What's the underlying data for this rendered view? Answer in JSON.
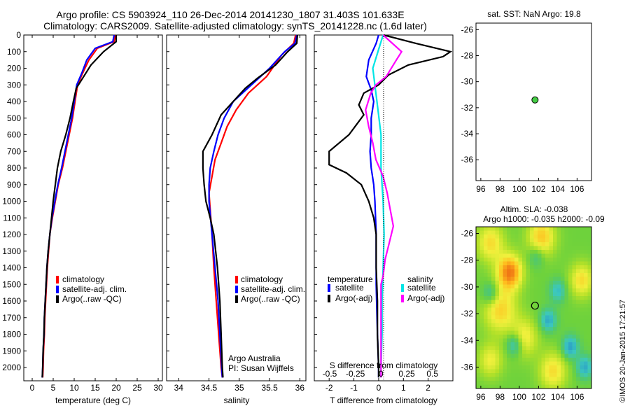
{
  "title_line1": "Argo profile: CS 5903924_110 26-Dec-2014 20141230_1807 31.403S 101.633E",
  "title_line2": "Climatology: CARS2009. Satellite-adjusted climatology: synTS_20141228.nc (1.6d later)",
  "sst_title": "sat. SST: NaN Argo: 19.8",
  "slamap_title1": "Altim. SLA: -0.038",
  "slamap_title2": "Argo h1000: -0.035 h2000: -0.09",
  "credit": "©IMOS 20-Jan-2015 17:21:57",
  "argo_note1": "Argo Australia",
  "argo_note2": "PI: Susan Wijffels",
  "colors": {
    "climatology": "#ff0000",
    "satellite": "#0000ff",
    "argo": "#000000",
    "sal_satellite": "#00e5e5",
    "sal_argo": "#ff00ff",
    "float_marker": "#44cc44"
  },
  "chart_data": [
    {
      "type": "line",
      "xlabel": "temperature (deg C)",
      "ylabel": "",
      "xlim": [
        -2,
        31
      ],
      "ylim": [
        2080,
        0
      ],
      "xticks": [
        "0",
        "5",
        "10",
        "15",
        "20",
        "25",
        "30"
      ],
      "yticks": [
        "0",
        "100",
        "200",
        "300",
        "400",
        "500",
        "600",
        "700",
        "800",
        "900",
        "1000",
        "1100",
        "1200",
        "1300",
        "1400",
        "1500",
        "1600",
        "1700",
        "1800",
        "1900",
        "2000"
      ],
      "legend": [
        "climatology",
        "satellite-adj. clim.",
        "Argo(..raw -QC)"
      ],
      "series": [
        {
          "name": "climatology",
          "points": [
            [
              19.8,
              0
            ],
            [
              19.5,
              40
            ],
            [
              15.5,
              80
            ],
            [
              13.5,
              150
            ],
            [
              12,
              230
            ],
            [
              10.8,
              300
            ],
            [
              10.2,
              400
            ],
            [
              9.6,
              500
            ],
            [
              8.8,
              600
            ],
            [
              8,
              700
            ],
            [
              7.2,
              800
            ],
            [
              6.2,
              900
            ],
            [
              5.5,
              1000
            ],
            [
              4.8,
              1100
            ],
            [
              4.2,
              1200
            ],
            [
              3.9,
              1300
            ],
            [
              3.6,
              1400
            ],
            [
              3.4,
              1500
            ],
            [
              3.2,
              1600
            ],
            [
              3,
              1700
            ],
            [
              2.9,
              1800
            ],
            [
              2.7,
              1900
            ],
            [
              2.6,
              2000
            ],
            [
              2.5,
              2060
            ]
          ]
        },
        {
          "name": "satellite-adj. clim.",
          "points": [
            [
              19.5,
              0
            ],
            [
              19.2,
              40
            ],
            [
              15,
              80
            ],
            [
              13,
              150
            ],
            [
              11.8,
              230
            ],
            [
              10.6,
              300
            ],
            [
              10,
              400
            ],
            [
              9.4,
              500
            ],
            [
              8.6,
              600
            ],
            [
              7.8,
              700
            ],
            [
              7,
              800
            ],
            [
              6.1,
              900
            ],
            [
              5.4,
              1000
            ],
            [
              4.7,
              1100
            ],
            [
              4.2,
              1200
            ],
            [
              3.8,
              1300
            ],
            [
              3.5,
              1400
            ],
            [
              3.3,
              1500
            ],
            [
              3.1,
              1600
            ],
            [
              2.9,
              1700
            ],
            [
              2.8,
              1800
            ],
            [
              2.6,
              1900
            ],
            [
              2.5,
              2000
            ],
            [
              2.4,
              2060
            ]
          ]
        },
        {
          "name": "Argo(..raw -QC)",
          "points": [
            [
              20,
              0
            ],
            [
              20,
              40
            ],
            [
              17,
              100
            ],
            [
              14,
              180
            ],
            [
              12,
              260
            ],
            [
              10.5,
              320
            ],
            [
              9.8,
              400
            ],
            [
              9,
              500
            ],
            [
              8,
              600
            ],
            [
              6.8,
              700
            ],
            [
              6,
              800
            ],
            [
              5.5,
              900
            ],
            [
              5,
              1000
            ],
            [
              4.6,
              1100
            ],
            [
              4.2,
              1200
            ],
            [
              3.8,
              1300
            ],
            [
              3.5,
              1400
            ],
            [
              3.3,
              1500
            ],
            [
              3.1,
              1600
            ],
            [
              2.9,
              1700
            ],
            [
              2.8,
              1800
            ],
            [
              2.6,
              1900
            ],
            [
              2.5,
              2000
            ],
            [
              2.4,
              2060
            ]
          ]
        }
      ]
    },
    {
      "type": "line",
      "xlabel": "salinity",
      "xlim": [
        33.8,
        36.1
      ],
      "ylim": [
        2080,
        0
      ],
      "xticks": [
        "34",
        "34.5",
        "35",
        "35.5",
        "36"
      ],
      "legend": [
        "climatology",
        "satellite-adj. clim.",
        "Argo(..raw -QC)"
      ],
      "series": [
        {
          "name": "climatology",
          "points": [
            [
              35.93,
              0
            ],
            [
              35.9,
              50
            ],
            [
              35.7,
              120
            ],
            [
              35.45,
              250
            ],
            [
              35.15,
              350
            ],
            [
              34.95,
              450
            ],
            [
              34.8,
              550
            ],
            [
              34.7,
              650
            ],
            [
              34.6,
              750
            ],
            [
              34.55,
              850
            ],
            [
              34.5,
              950
            ],
            [
              34.52,
              1050
            ],
            [
              34.55,
              1200
            ],
            [
              34.58,
              1400
            ],
            [
              34.62,
              1600
            ],
            [
              34.66,
              1800
            ],
            [
              34.7,
              2000
            ],
            [
              34.72,
              2060
            ]
          ]
        },
        {
          "name": "satellite-adj. clim.",
          "points": [
            [
              35.95,
              0
            ],
            [
              35.92,
              50
            ],
            [
              35.75,
              100
            ],
            [
              35.5,
              200
            ],
            [
              35.2,
              300
            ],
            [
              34.9,
              400
            ],
            [
              34.75,
              500
            ],
            [
              34.65,
              600
            ],
            [
              34.58,
              700
            ],
            [
              34.52,
              800
            ],
            [
              34.5,
              900
            ],
            [
              34.5,
              1000
            ],
            [
              34.55,
              1200
            ],
            [
              34.6,
              1400
            ],
            [
              34.65,
              1600
            ],
            [
              34.68,
              1800
            ],
            [
              34.71,
              2000
            ],
            [
              34.72,
              2060
            ]
          ]
        },
        {
          "name": "Argo(..raw -QC)",
          "points": [
            [
              35.96,
              0
            ],
            [
              35.95,
              50
            ],
            [
              35.8,
              100
            ],
            [
              35.6,
              180
            ],
            [
              35.3,
              260
            ],
            [
              35.1,
              320
            ],
            [
              34.9,
              400
            ],
            [
              34.7,
              480
            ],
            [
              34.55,
              600
            ],
            [
              34.4,
              700
            ],
            [
              34.4,
              800
            ],
            [
              34.42,
              900
            ],
            [
              34.45,
              1000
            ],
            [
              34.52,
              1100
            ],
            [
              34.58,
              1200
            ],
            [
              34.64,
              1400
            ],
            [
              34.68,
              1600
            ],
            [
              34.7,
              1800
            ],
            [
              34.72,
              2000
            ],
            [
              34.73,
              2060
            ]
          ]
        }
      ]
    },
    {
      "type": "line",
      "xlabel": "T difference from climatology",
      "xlabel_top": "S difference from climatology",
      "xlim": [
        -2.6,
        3.0
      ],
      "ylim": [
        2080,
        0
      ],
      "xticks": [
        "-2",
        "-1",
        "0",
        "1",
        "2"
      ],
      "xticks_sal": [
        "-0.5",
        "-0.25",
        "0",
        "0.25",
        "0.5"
      ],
      "legend_title_t": "temperature",
      "legend_title_s": "salinity",
      "legend": [
        "satellite",
        "Argo(-adj)",
        "satellite",
        "Argo(-adj)"
      ],
      "series": [
        {
          "name": "satellite",
          "points": [
            [
              0,
              0
            ],
            [
              -0.1,
              50
            ],
            [
              -0.4,
              150
            ],
            [
              -0.5,
              250
            ],
            [
              -0.3,
              330
            ],
            [
              -0.2,
              400
            ],
            [
              -0.3,
              500
            ],
            [
              -0.3,
              600
            ],
            [
              -0.35,
              700
            ],
            [
              -0.3,
              800
            ],
            [
              -0.2,
              900
            ],
            [
              -0.15,
              1000
            ],
            [
              -0.1,
              1200
            ],
            [
              -0.1,
              1500
            ],
            [
              -0.05,
              1800
            ],
            [
              0,
              2000
            ],
            [
              0,
              2060
            ]
          ]
        },
        {
          "name": "Argo(-adj)",
          "points": [
            [
              0.2,
              0
            ],
            [
              1.5,
              50
            ],
            [
              2.9,
              100
            ],
            [
              2.6,
              130
            ],
            [
              1.2,
              180
            ],
            [
              0.4,
              240
            ],
            [
              0,
              300
            ],
            [
              -0.6,
              350
            ],
            [
              -0.8,
              420
            ],
            [
              -0.6,
              480
            ],
            [
              -1.2,
              600
            ],
            [
              -2,
              700
            ],
            [
              -2,
              780
            ],
            [
              -1.3,
              830
            ],
            [
              -0.7,
              900
            ],
            [
              -0.4,
              1000
            ],
            [
              -0.2,
              1100
            ],
            [
              -0.1,
              1200
            ],
            [
              -0.1,
              1400
            ],
            [
              -0.05,
              1600
            ],
            [
              -0.05,
              1800
            ],
            [
              0,
              2000
            ],
            [
              0,
              2060
            ]
          ]
        },
        {
          "name": "satellite",
          "points": [
            [
              0.02,
              0
            ],
            [
              -0.02,
              80
            ],
            [
              -0.08,
              200
            ],
            [
              -0.06,
              300
            ],
            [
              -0.04,
              400
            ],
            [
              -0.02,
              500
            ],
            [
              0,
              600
            ],
            [
              0,
              800
            ],
            [
              0.02,
              1000
            ],
            [
              0.03,
              1200
            ],
            [
              0.02,
              1400
            ],
            [
              0.01,
              1600
            ],
            [
              0.01,
              1800
            ],
            [
              0,
              2000
            ],
            [
              0,
              2060
            ]
          ]
        },
        {
          "name": "Argo(-adj)",
          "points": [
            [
              0.02,
              0
            ],
            [
              0.2,
              100
            ],
            [
              0.15,
              150
            ],
            [
              0.05,
              250
            ],
            [
              -0.05,
              300
            ],
            [
              -0.1,
              350
            ],
            [
              -0.15,
              450
            ],
            [
              -0.12,
              550
            ],
            [
              -0.08,
              650
            ],
            [
              -0.05,
              750
            ],
            [
              0.02,
              850
            ],
            [
              0.06,
              950
            ],
            [
              0.09,
              1050
            ],
            [
              0.12,
              1150
            ],
            [
              0.08,
              1250
            ],
            [
              0.04,
              1350
            ],
            [
              0.02,
              1450
            ],
            [
              0,
              1500
            ],
            [
              0,
              1800
            ],
            [
              0,
              2000
            ],
            [
              0,
              2060
            ]
          ]
        }
      ]
    },
    {
      "type": "scatter",
      "title": "sat. SST: NaN Argo: 19.8",
      "xlim": [
        95.5,
        107.5
      ],
      "ylim": [
        -37.6,
        -25.5
      ],
      "xticks": [
        "96",
        "98",
        "100",
        "102",
        "104",
        "106"
      ],
      "yticks": [
        "-26",
        "-28",
        "-30",
        "-32",
        "-34",
        "-36"
      ],
      "points": [
        [
          101.633,
          -31.403
        ]
      ]
    },
    {
      "type": "heatmap",
      "title": "Altim. SLA: -0.038",
      "subtitle": "Argo h1000: -0.035 h2000: -0.09",
      "xlim": [
        95.5,
        107.5
      ],
      "ylim": [
        -37.6,
        -25.5
      ],
      "xticks": [
        "96",
        "98",
        "100",
        "102",
        "104",
        "106"
      ],
      "yticks": [
        "-26",
        "-28",
        "-30",
        "-32",
        "-34",
        "-36"
      ],
      "marker": [
        101.633,
        -31.403
      ],
      "blobs": [
        {
          "x": 99.0,
          "y": -28.9,
          "v": 0.9,
          "r": 0.9
        },
        {
          "x": 98.0,
          "y": -31.7,
          "v": 0.55,
          "r": 1.2
        },
        {
          "x": 97.0,
          "y": -26.7,
          "v": 0.5,
          "r": 1.0
        },
        {
          "x": 102.3,
          "y": -26.3,
          "v": 0.6,
          "r": 1.0
        },
        {
          "x": 106.5,
          "y": -29.5,
          "v": 0.5,
          "r": 0.9
        },
        {
          "x": 100.5,
          "y": -33.8,
          "v": 0.45,
          "r": 1.0
        },
        {
          "x": 103.5,
          "y": -36.3,
          "v": 0.5,
          "r": 1.0
        },
        {
          "x": 97.0,
          "y": -35.5,
          "v": 0.4,
          "r": 0.9
        },
        {
          "x": 105.3,
          "y": -34.5,
          "v": -0.55,
          "r": 0.6
        },
        {
          "x": 99.5,
          "y": -34.3,
          "v": -0.5,
          "r": 0.6
        },
        {
          "x": 103.0,
          "y": -32.5,
          "v": -0.5,
          "r": 0.6
        },
        {
          "x": 104.0,
          "y": -30.3,
          "v": -0.4,
          "r": 0.6
        },
        {
          "x": 97.0,
          "y": -30.5,
          "v": -0.4,
          "r": 0.6
        },
        {
          "x": 106.8,
          "y": -36.0,
          "v": -0.5,
          "r": 0.6
        },
        {
          "x": 101.8,
          "y": -27.7,
          "v": -0.3,
          "r": 0.6
        }
      ]
    }
  ]
}
